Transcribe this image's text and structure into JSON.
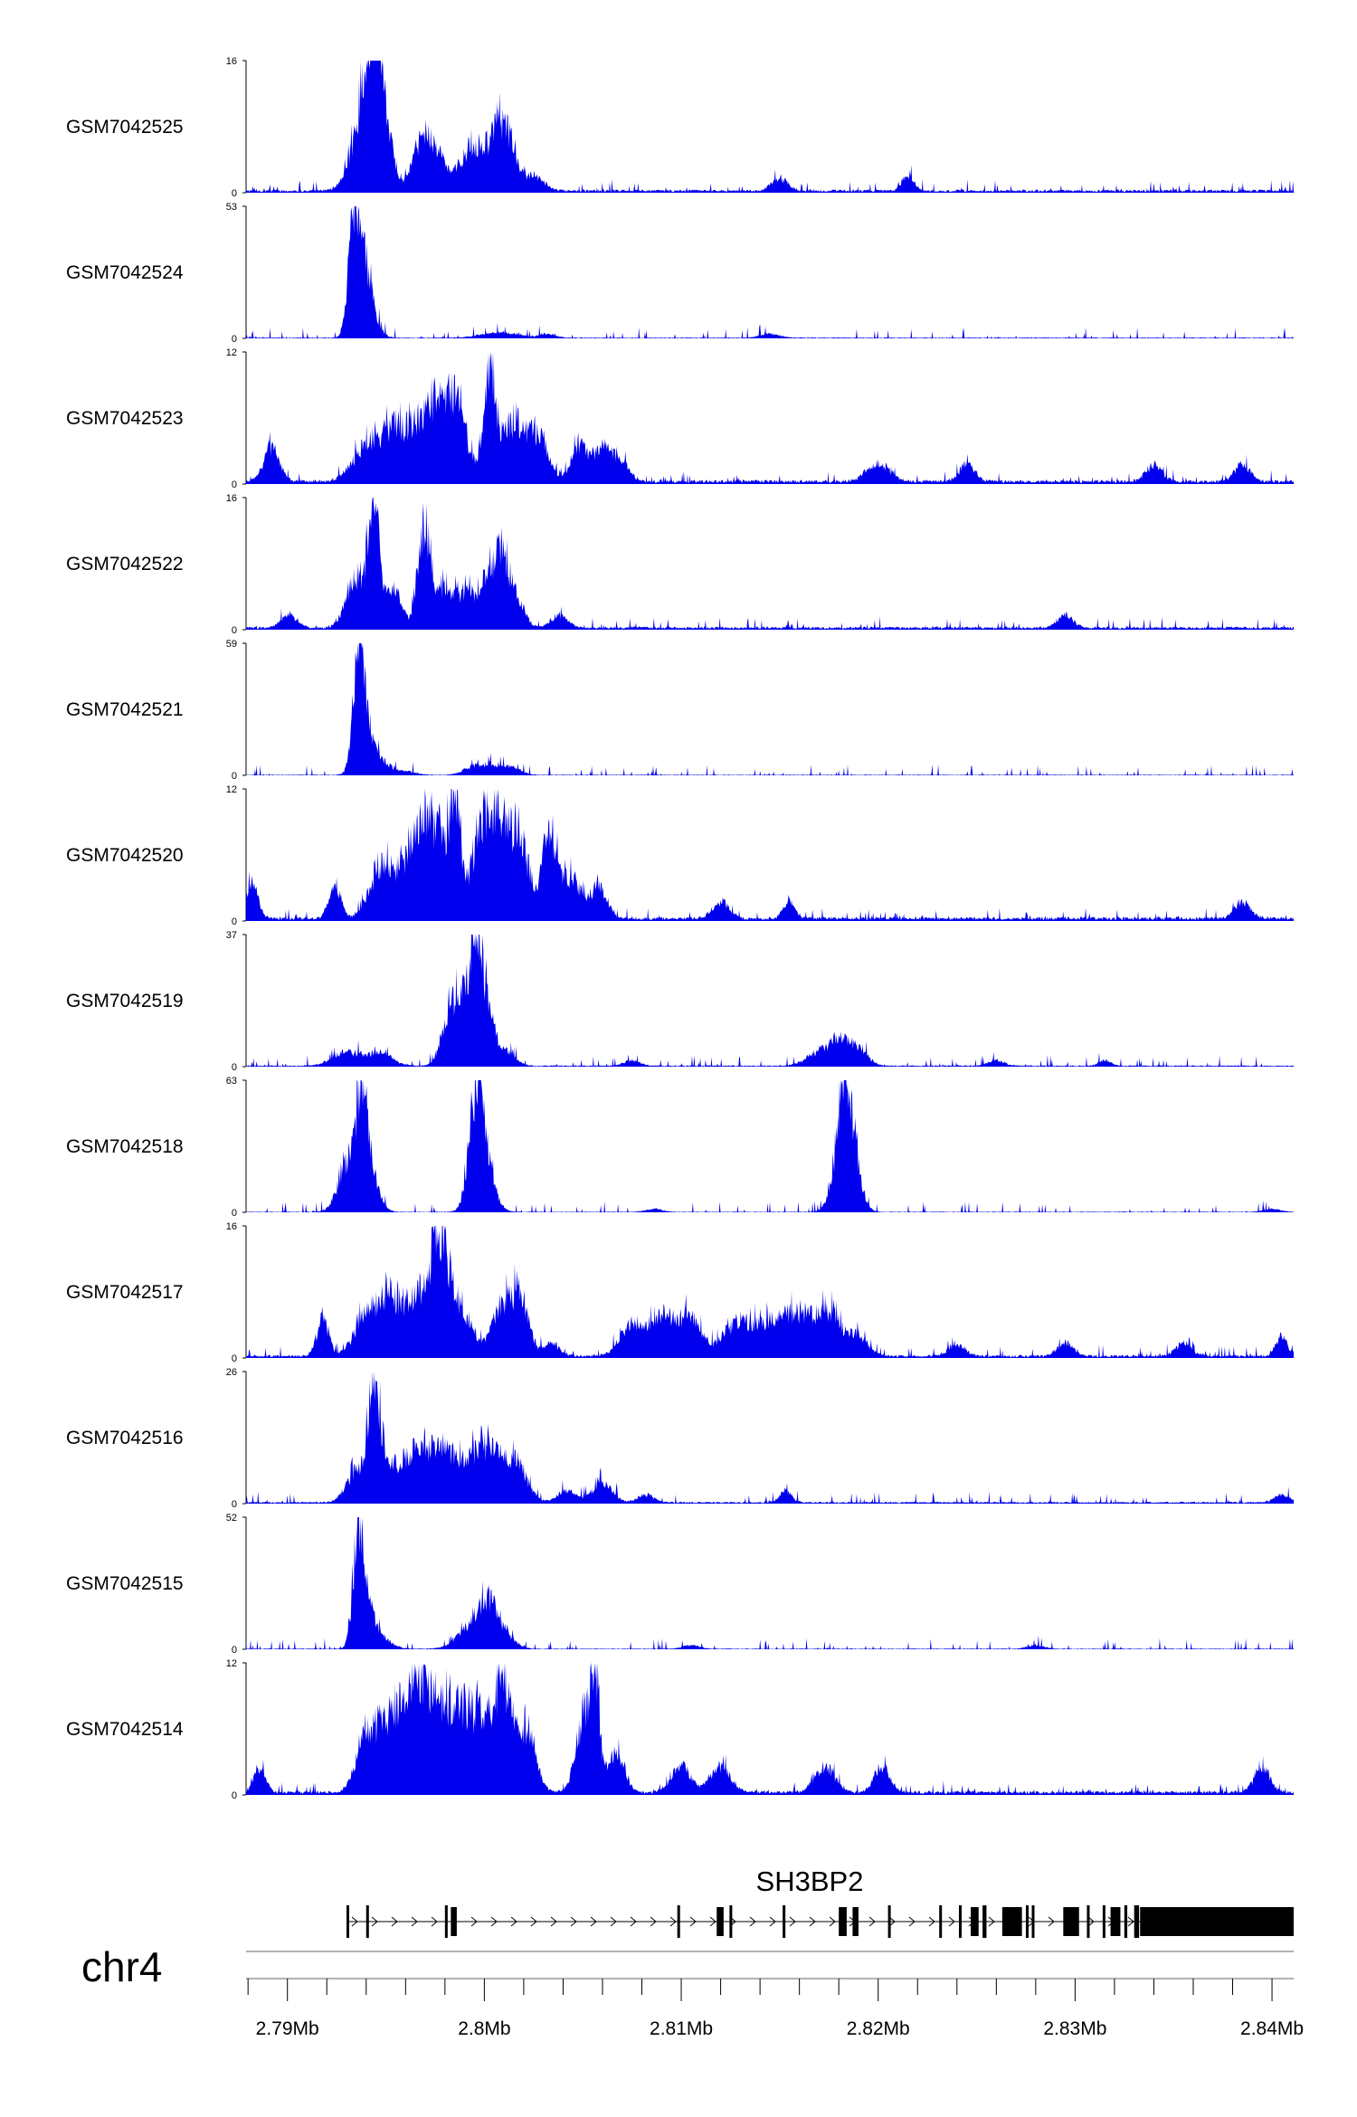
{
  "chart_data": {
    "type": "area",
    "chromosome": "chr4",
    "xaxis": {
      "min": 2787900,
      "max": 2841100,
      "tick_labels": [
        "2.79Mb",
        "2.8Mb",
        "2.81Mb",
        "2.82Mb",
        "2.83Mb",
        "2.84Mb"
      ],
      "ticks": [
        2790000,
        2800000,
        2810000,
        2820000,
        2830000,
        2840000
      ]
    },
    "fill_color": "#0000ee",
    "tracks": [
      {
        "name": "GSM7042525",
        "ymax": 16,
        "ymin": 0,
        "baseline": 0.3,
        "peaks": [
          [
            2794600,
            16,
            300
          ],
          [
            2794200,
            13,
            400
          ],
          [
            2793800,
            9,
            600
          ],
          [
            2795200,
            6,
            300
          ],
          [
            2796800,
            6,
            500
          ],
          [
            2797500,
            5,
            600
          ],
          [
            2799200,
            4,
            500
          ],
          [
            2800000,
            5,
            700
          ],
          [
            2801000,
            9,
            500
          ],
          [
            2802500,
            2.5,
            500
          ],
          [
            2815000,
            2,
            400
          ],
          [
            2821500,
            2.5,
            300
          ]
        ]
      },
      {
        "name": "GSM7042524",
        "ymax": 53,
        "ymin": 0,
        "baseline": 0.3,
        "peaks": [
          [
            2793400,
            53,
            280
          ],
          [
            2793800,
            30,
            400
          ],
          [
            2794200,
            10,
            400
          ],
          [
            2800800,
            3,
            900
          ],
          [
            2803200,
            2,
            400
          ],
          [
            2814500,
            2,
            500
          ]
        ]
      },
      {
        "name": "GSM7042523",
        "ymax": 12,
        "ymin": 0,
        "baseline": 0.3,
        "peaks": [
          [
            2789200,
            4,
            400
          ],
          [
            2794000,
            4,
            700
          ],
          [
            2795500,
            6,
            700
          ],
          [
            2797200,
            8,
            700
          ],
          [
            2798500,
            9,
            600
          ],
          [
            2800300,
            12,
            300
          ],
          [
            2801500,
            7,
            600
          ],
          [
            2802800,
            5,
            500
          ],
          [
            2804800,
            4,
            400
          ],
          [
            2806000,
            4,
            500
          ],
          [
            2807000,
            2,
            400
          ],
          [
            2820000,
            2,
            600
          ],
          [
            2824500,
            2,
            400
          ],
          [
            2834000,
            2,
            400
          ],
          [
            2838500,
            2,
            400
          ]
        ]
      },
      {
        "name": "GSM7042522",
        "ymax": 16,
        "ymin": 0,
        "baseline": 0.3,
        "peaks": [
          [
            2793500,
            8,
            500
          ],
          [
            2794400,
            16,
            300
          ],
          [
            2795400,
            6,
            400
          ],
          [
            2796900,
            15,
            300
          ],
          [
            2797800,
            6,
            500
          ],
          [
            2799000,
            5,
            500
          ],
          [
            2800000,
            6,
            400
          ],
          [
            2800800,
            12,
            350
          ],
          [
            2801600,
            5,
            400
          ],
          [
            2790100,
            2,
            400
          ],
          [
            2803800,
            2,
            400
          ],
          [
            2829500,
            2,
            400
          ]
        ]
      },
      {
        "name": "GSM7042521",
        "ymax": 59,
        "ymin": 0,
        "baseline": 0.25,
        "peaks": [
          [
            2793600,
            59,
            260
          ],
          [
            2793900,
            30,
            400
          ],
          [
            2794700,
            8,
            500
          ],
          [
            2799400,
            4,
            500
          ],
          [
            2800500,
            6,
            600
          ],
          [
            2801600,
            3,
            400
          ],
          [
            2796000,
            2,
            500
          ]
        ]
      },
      {
        "name": "GSM7042520",
        "ymax": 12,
        "ymin": 0,
        "baseline": 0.3,
        "peaks": [
          [
            2788200,
            4,
            300
          ],
          [
            2792400,
            4,
            300
          ],
          [
            2794800,
            6,
            600
          ],
          [
            2796500,
            8,
            700
          ],
          [
            2798500,
            12,
            300
          ],
          [
            2797500,
            8,
            600
          ],
          [
            2799800,
            9,
            500
          ],
          [
            2800700,
            11,
            500
          ],
          [
            2801800,
            9,
            500
          ],
          [
            2803300,
            10,
            350
          ],
          [
            2804400,
            5,
            500
          ],
          [
            2805800,
            4,
            400
          ],
          [
            2812000,
            2,
            400
          ],
          [
            2815500,
            2,
            300
          ],
          [
            2838500,
            2,
            400
          ]
        ]
      },
      {
        "name": "GSM7042519",
        "ymax": 37,
        "ymin": 0,
        "baseline": 0.3,
        "peaks": [
          [
            2793000,
            5,
            700
          ],
          [
            2794700,
            5,
            600
          ],
          [
            2798200,
            13,
            400
          ],
          [
            2799000,
            22,
            600
          ],
          [
            2799600,
            37,
            300
          ],
          [
            2800200,
            15,
            400
          ],
          [
            2801200,
            5,
            400
          ],
          [
            2817200,
            6,
            700
          ],
          [
            2818300,
            8,
            500
          ],
          [
            2819200,
            4,
            400
          ],
          [
            2807500,
            2,
            400
          ],
          [
            2826000,
            2,
            400
          ],
          [
            2831500,
            2,
            300
          ]
        ]
      },
      {
        "name": "GSM7042518",
        "ymax": 63,
        "ymin": 0,
        "baseline": 0.25,
        "peaks": [
          [
            2793100,
            30,
            500
          ],
          [
            2793800,
            63,
            300
          ],
          [
            2794300,
            18,
            400
          ],
          [
            2799600,
            55,
            350
          ],
          [
            2799900,
            35,
            500
          ],
          [
            2818300,
            63,
            300
          ],
          [
            2818700,
            35,
            400
          ],
          [
            2817900,
            18,
            400
          ],
          [
            2808600,
            2,
            400
          ],
          [
            2840000,
            2,
            400
          ]
        ]
      },
      {
        "name": "GSM7042517",
        "ymax": 16,
        "ymin": 0,
        "baseline": 0.3,
        "peaks": [
          [
            2791800,
            6,
            300
          ],
          [
            2794000,
            6,
            600
          ],
          [
            2795200,
            8,
            600
          ],
          [
            2796800,
            10,
            700
          ],
          [
            2797800,
            16,
            400
          ],
          [
            2798900,
            7,
            500
          ],
          [
            2801000,
            8,
            600
          ],
          [
            2801900,
            7,
            400
          ],
          [
            2803400,
            2,
            400
          ],
          [
            2807500,
            5,
            600
          ],
          [
            2809000,
            6,
            600
          ],
          [
            2810400,
            6,
            600
          ],
          [
            2812800,
            5,
            700
          ],
          [
            2814500,
            5,
            800
          ],
          [
            2816000,
            6,
            700
          ],
          [
            2817500,
            7,
            600
          ],
          [
            2819000,
            3,
            500
          ],
          [
            2824000,
            2,
            400
          ],
          [
            2829500,
            2,
            400
          ],
          [
            2835500,
            2,
            400
          ],
          [
            2840500,
            3,
            300
          ]
        ]
      },
      {
        "name": "GSM7042516",
        "ymax": 26,
        "ymin": 0,
        "baseline": 0.3,
        "peaks": [
          [
            2793500,
            8,
            500
          ],
          [
            2794400,
            26,
            300
          ],
          [
            2795200,
            10,
            600
          ],
          [
            2796600,
            14,
            500
          ],
          [
            2797800,
            14,
            500
          ],
          [
            2799000,
            10,
            500
          ],
          [
            2800000,
            11,
            500
          ],
          [
            2801000,
            9,
            600
          ],
          [
            2801800,
            6,
            500
          ],
          [
            2804200,
            3,
            500
          ],
          [
            2806000,
            5,
            500
          ],
          [
            2808200,
            2,
            400
          ],
          [
            2815300,
            3,
            300
          ],
          [
            2840500,
            2,
            400
          ]
        ]
      },
      {
        "name": "GSM7042515",
        "ymax": 52,
        "ymin": 0,
        "baseline": 0.25,
        "peaks": [
          [
            2793600,
            52,
            260
          ],
          [
            2794000,
            22,
            400
          ],
          [
            2794800,
            5,
            500
          ],
          [
            2799400,
            12,
            700
          ],
          [
            2800200,
            18,
            400
          ],
          [
            2801000,
            8,
            500
          ],
          [
            2810500,
            2,
            400
          ],
          [
            2828000,
            2,
            400
          ]
        ]
      },
      {
        "name": "GSM7042514",
        "ymax": 12,
        "ymin": 0,
        "baseline": 0.3,
        "peaks": [
          [
            2788600,
            3,
            300
          ],
          [
            2794000,
            6,
            500
          ],
          [
            2795300,
            8,
            700
          ],
          [
            2796500,
            9,
            600
          ],
          [
            2797600,
            9,
            600
          ],
          [
            2798900,
            9,
            600
          ],
          [
            2800100,
            8,
            500
          ],
          [
            2801000,
            11,
            400
          ],
          [
            2802100,
            7,
            500
          ],
          [
            2805000,
            8,
            400
          ],
          [
            2805600,
            12,
            250
          ],
          [
            2806700,
            5,
            400
          ],
          [
            2810000,
            3,
            500
          ],
          [
            2812000,
            3,
            500
          ],
          [
            2817300,
            3,
            500
          ],
          [
            2820200,
            3,
            400
          ],
          [
            2839500,
            3,
            400
          ]
        ]
      }
    ],
    "gene_track": {
      "gene_name": "SH3BP2",
      "strand": "+",
      "start": 2793000,
      "end": 2841100,
      "exons": [
        [
          2793000,
          2793050
        ],
        [
          2794000,
          2794100
        ],
        [
          2798000,
          2798100
        ],
        [
          2798300,
          2798600
        ],
        [
          2809800,
          2809900
        ],
        [
          2811800,
          2812150
        ],
        [
          2812450,
          2812550
        ],
        [
          2815150,
          2815250
        ],
        [
          2818000,
          2818400
        ],
        [
          2818700,
          2819000
        ],
        [
          2820500,
          2820600
        ],
        [
          2823100,
          2823200
        ],
        [
          2824100,
          2824150
        ],
        [
          2824700,
          2825100
        ],
        [
          2825300,
          2825500
        ],
        [
          2826300,
          2827300
        ],
        [
          2827500,
          2827600
        ],
        [
          2827800,
          2827900
        ],
        [
          2829400,
          2830200
        ],
        [
          2830600,
          2830700
        ],
        [
          2831400,
          2831500
        ],
        [
          2831800,
          2832300
        ],
        [
          2832500,
          2832650
        ],
        [
          2833000,
          2833250
        ],
        [
          2833300,
          2841100
        ]
      ],
      "tall_exons_from": 2833300
    }
  }
}
